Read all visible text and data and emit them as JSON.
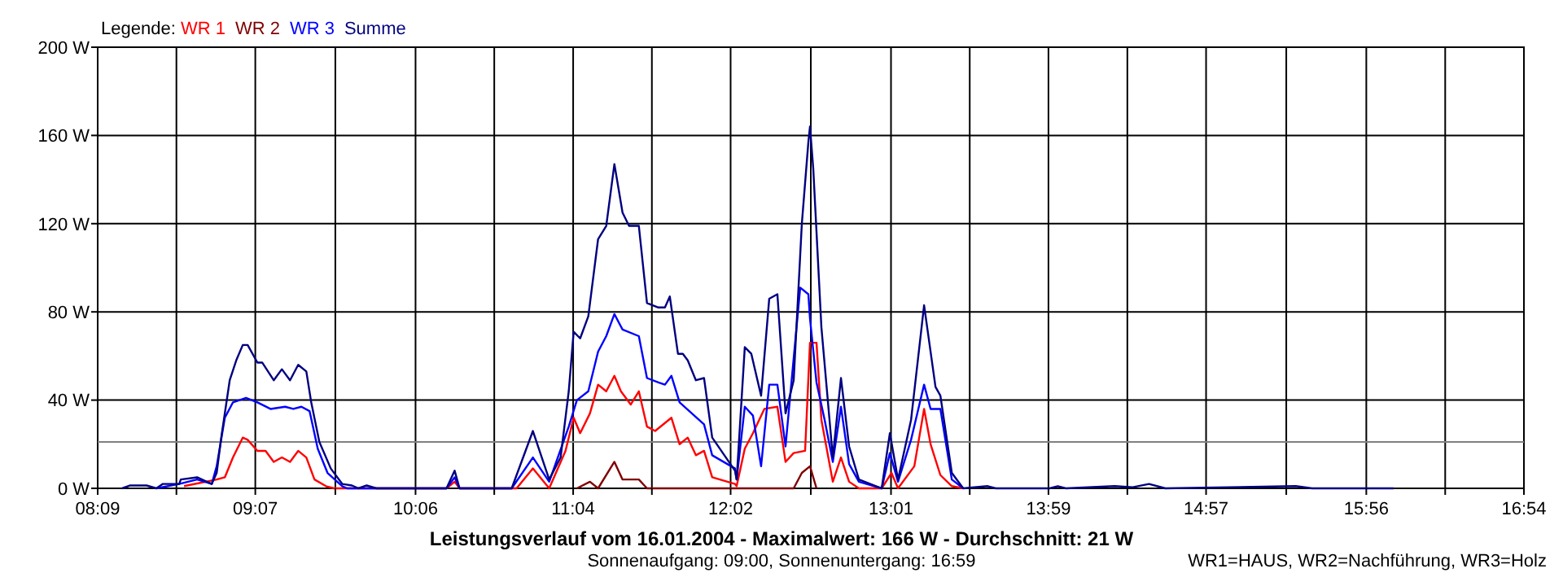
{
  "chart_data": {
    "type": "line",
    "title": "Leistungsverlauf vom 16.01.2004 - Maximalwert: 166 W - Durchschnitt: 21 W",
    "legend_title": "Legende:",
    "legend": "top left",
    "grid": true,
    "line_style": "solid",
    "annotations": [
      "Sonnenaufgang: 09:00, Sonnenuntergang: 16:59",
      "WR1=HAUS, WR2=Nachführung, WR3=Holz"
    ],
    "xlim": [
      8.15,
      16.9
    ],
    "xticks": [
      {
        "value": 8.15,
        "label": "08:09"
      },
      {
        "value": 8.633,
        "label": null
      },
      {
        "value": 9.117,
        "label": "09:07"
      },
      {
        "value": 9.608,
        "label": null
      },
      {
        "value": 10.1,
        "label": "10:06"
      },
      {
        "value": 10.583,
        "label": null
      },
      {
        "value": 11.067,
        "label": "11:04"
      },
      {
        "value": 11.55,
        "label": null
      },
      {
        "value": 12.033,
        "label": "12:02"
      },
      {
        "value": 12.525,
        "label": null
      },
      {
        "value": 13.017,
        "label": "13:01"
      },
      {
        "value": 13.5,
        "label": null
      },
      {
        "value": 13.983,
        "label": "13:59"
      },
      {
        "value": 14.467,
        "label": null
      },
      {
        "value": 14.95,
        "label": "14:57"
      },
      {
        "value": 15.442,
        "label": null
      },
      {
        "value": 15.933,
        "label": "15:56"
      },
      {
        "value": 16.417,
        "label": null
      },
      {
        "value": 16.9,
        "label": "16:54"
      }
    ],
    "ylim": [
      0,
      200
    ],
    "yticks": [
      {
        "value": 0,
        "label": "0 W"
      },
      {
        "value": 40,
        "label": "40 W"
      },
      {
        "value": 80,
        "label": "80 W"
      },
      {
        "value": 120,
        "label": "120 W"
      },
      {
        "value": 160,
        "label": "160 W"
      },
      {
        "value": 200,
        "label": "200 W"
      }
    ],
    "ref_lines": [
      {
        "axis": "y",
        "value": 21,
        "color": "#808080"
      }
    ],
    "series": [
      {
        "name": "WR 1",
        "color": "#ff0000",
        "x": [
          8.68,
          8.88,
          8.93,
          8.98,
          9.04,
          9.07,
          9.13,
          9.18,
          9.23,
          9.28,
          9.33,
          9.38,
          9.43,
          9.48,
          9.55,
          9.6,
          10.29,
          10.34,
          10.37,
          10.72,
          10.82,
          10.92,
          11.02,
          11.07,
          11.11,
          11.17,
          11.22,
          11.27,
          11.32,
          11.36,
          11.42,
          11.47,
          11.52,
          11.57,
          11.67,
          11.72,
          11.77,
          11.82,
          11.87,
          11.92,
          12.06,
          12.07,
          12.12,
          12.17,
          12.24,
          12.32,
          12.37,
          12.42,
          12.49,
          12.52,
          12.56,
          12.59,
          12.66,
          12.71,
          12.76,
          12.82,
          12.96,
          13.02,
          13.06,
          13.16,
          13.22,
          13.26,
          13.32,
          13.39,
          13.46
        ],
        "values": [
          1,
          4,
          5,
          14,
          23,
          22,
          17,
          17,
          12,
          14,
          12,
          17,
          14,
          4,
          1,
          0,
          0,
          3,
          0,
          0,
          9,
          0,
          17,
          32,
          25,
          34,
          47,
          44,
          51,
          44,
          38,
          44,
          28,
          26,
          32,
          20,
          23,
          15,
          17,
          5,
          2,
          1,
          18,
          25,
          36,
          37,
          12,
          16,
          17,
          66,
          66,
          31,
          3,
          14,
          3,
          0,
          0,
          7,
          0,
          10,
          36,
          20,
          6,
          1,
          0
        ]
      },
      {
        "name": "WR 2",
        "color": "#800000",
        "x": [
          11.09,
          11.17,
          11.22,
          11.32,
          11.37,
          11.47,
          11.52,
          11.69,
          12.42,
          12.47,
          12.52,
          12.56
        ],
        "values": [
          0,
          3,
          0,
          12,
          4,
          4,
          0,
          0,
          0,
          7,
          10,
          0
        ]
      },
      {
        "name": "WR 3",
        "color": "#0000ff",
        "x": [
          8.51,
          8.65,
          8.76,
          8.85,
          8.88,
          8.93,
          8.98,
          9.06,
          9.13,
          9.21,
          9.3,
          9.35,
          9.4,
          9.45,
          9.5,
          9.56,
          9.65,
          9.68,
          10.29,
          10.34,
          10.37,
          10.69,
          10.82,
          10.92,
          11.04,
          11.09,
          11.16,
          11.22,
          11.27,
          11.32,
          11.37,
          11.47,
          11.52,
          11.59,
          11.63,
          11.67,
          11.72,
          11.81,
          11.87,
          11.92,
          12.06,
          12.07,
          12.12,
          12.17,
          12.22,
          12.27,
          12.32,
          12.37,
          12.46,
          12.51,
          12.52,
          12.56,
          12.61,
          12.66,
          12.71,
          12.76,
          12.82,
          12.96,
          13.01,
          13.06,
          13.14,
          13.22,
          13.26,
          13.32,
          13.39,
          13.46
        ],
        "values": [
          0,
          2,
          4,
          2,
          10,
          32,
          39,
          41,
          39,
          36,
          37,
          36,
          37,
          35,
          18,
          7,
          1,
          0,
          0,
          5,
          0,
          0,
          14,
          3,
          28,
          40,
          44,
          62,
          69,
          79,
          72,
          69,
          50,
          48,
          47,
          51,
          39,
          33,
          29,
          15,
          9,
          4,
          37,
          33,
          10,
          47,
          47,
          19,
          91,
          88,
          77,
          48,
          31,
          12,
          37,
          11,
          3,
          0,
          16,
          3,
          22,
          47,
          36,
          36,
          4,
          0
        ]
      },
      {
        "name": "Summe",
        "color": "#000080",
        "x": [
          8.3,
          8.35,
          8.45,
          8.51,
          8.55,
          8.65,
          8.66,
          8.76,
          8.85,
          8.88,
          8.91,
          8.96,
          9.0,
          9.04,
          9.07,
          9.13,
          9.16,
          9.23,
          9.28,
          9.33,
          9.38,
          9.43,
          9.46,
          9.51,
          9.58,
          9.65,
          9.71,
          9.75,
          9.8,
          9.86,
          10.29,
          10.34,
          10.37,
          10.69,
          10.82,
          10.92,
          10.99,
          11.04,
          11.07,
          11.11,
          11.16,
          11.22,
          11.27,
          11.32,
          11.37,
          11.41,
          11.47,
          11.52,
          11.59,
          11.63,
          11.66,
          11.71,
          11.74,
          11.77,
          11.82,
          11.87,
          11.92,
          12.06,
          12.07,
          12.12,
          12.16,
          12.22,
          12.27,
          12.32,
          12.37,
          12.42,
          12.47,
          12.51,
          12.52,
          12.54,
          12.59,
          12.66,
          12.71,
          12.76,
          12.82,
          12.96,
          13.01,
          13.06,
          13.14,
          13.22,
          13.29,
          13.32,
          13.39,
          13.46,
          13.61,
          13.66,
          13.99,
          14.04,
          14.09,
          14.39,
          14.5,
          14.6,
          14.7,
          15.5,
          15.6,
          16.1
        ],
        "values": [
          0,
          1.3,
          1.3,
          0,
          2,
          2,
          4,
          5,
          2,
          7,
          24,
          49,
          58,
          65,
          65,
          57,
          57,
          49,
          54,
          49,
          56,
          53,
          39,
          21,
          9,
          2,
          1.3,
          0,
          1.3,
          0,
          0,
          8,
          0,
          0,
          26,
          4,
          14,
          44,
          71,
          68,
          78,
          113,
          119,
          147,
          125,
          119,
          119,
          84,
          82,
          82,
          87,
          61,
          61,
          58,
          49,
          50,
          23,
          8,
          4,
          64,
          61,
          42,
          86,
          88,
          34,
          49,
          120,
          157,
          164,
          145,
          73,
          14,
          50,
          19,
          4,
          0,
          25,
          4,
          31,
          83,
          46,
          42,
          7,
          0,
          1,
          0,
          0,
          1,
          0,
          1,
          0.5,
          2,
          0,
          1,
          0,
          0
        ]
      }
    ]
  }
}
